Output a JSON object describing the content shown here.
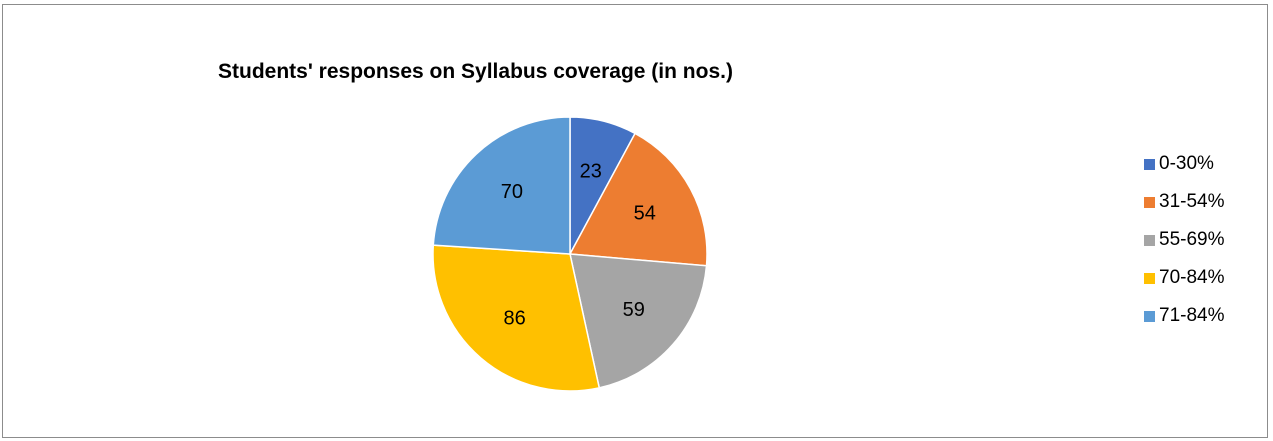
{
  "chart_data": {
    "type": "pie",
    "title": "Students' responses on Syllabus coverage (in nos.)",
    "categories": [
      "0-30%",
      "31-54%",
      "55-69%",
      "70-84%",
      "71-84%"
    ],
    "values": [
      23,
      54,
      59,
      86,
      70
    ],
    "colors": [
      "#4472C4",
      "#ED7D31",
      "#A5A5A5",
      "#FFC000",
      "#5B9BD5"
    ],
    "legend_position": "right",
    "start_angle_deg": 0,
    "direction": "clockwise"
  }
}
